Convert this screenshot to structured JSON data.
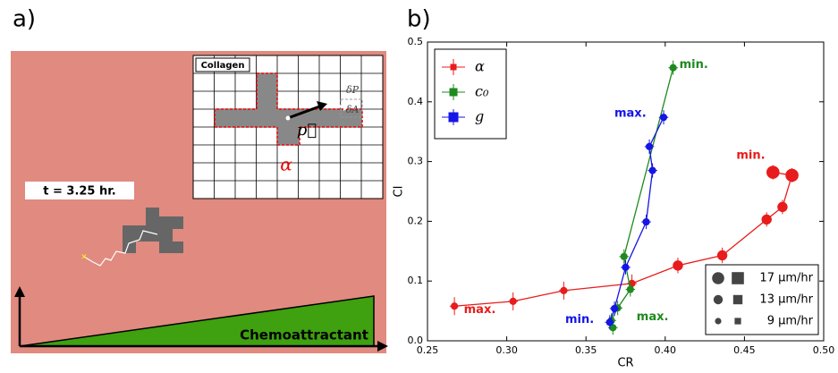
{
  "panel_a": {
    "label": "a)",
    "inset_title": "Collagen",
    "time": "t = 3.25 hr.",
    "gradient": "Chemoattractant",
    "delta_p": "δP",
    "delta_a": "δA",
    "polarization": "p⃗",
    "cell": "α"
  },
  "chart_data": {
    "type": "scatter",
    "label": "b)",
    "xlabel": "CR",
    "ylabel": "CI",
    "xlim": [
      0.25,
      0.5
    ],
    "ylim": [
      0,
      0.5
    ],
    "xticks": [
      0.25,
      {
        "value": 0.3,
        "label": "0.30"
      },
      0.35,
      {
        "value": 0.4,
        "label": "0.40"
      },
      0.45,
      {
        "value": 0.5,
        "label": "0.50"
      }
    ],
    "yticks": [
      {
        "value": 0,
        "label": "0.0"
      },
      0.1,
      0.2,
      0.3,
      0.4,
      0.5
    ],
    "legend": "upper left",
    "series": [
      {
        "name": "α",
        "color": "#e81c1c",
        "x": [
          0.267,
          0.304,
          0.336,
          0.379,
          0.408,
          0.436,
          0.464,
          0.474,
          0.48,
          0.468
        ],
        "values": [
          0.058,
          0.066,
          0.084,
          0.096,
          0.126,
          0.143,
          0.203,
          0.224,
          0.277,
          0.282
        ],
        "sizes": [
          9,
          9,
          9,
          9,
          13,
          13,
          13,
          13,
          17,
          17
        ],
        "xerr": [
          0.003,
          0.003,
          0.003,
          0.003,
          0.003,
          0.003,
          0.003,
          0.003,
          0.003,
          0.003
        ],
        "yerr": [
          0.015,
          0.015,
          0.015,
          0.015,
          0.013,
          0.013,
          0.012,
          0.012,
          0.012,
          0.012
        ]
      },
      {
        "name": "c₀",
        "color": "#1e8a1e",
        "x": [
          0.405,
          0.374,
          0.378,
          0.37,
          0.366,
          0.367
        ],
        "values": [
          0.457,
          0.141,
          0.086,
          0.055,
          0.034,
          0.022
        ],
        "sizes": [
          9,
          9,
          9,
          9,
          9,
          9
        ],
        "xerr": [
          0.003,
          0.003,
          0.003,
          0.003,
          0.003,
          0.003
        ],
        "yerr": [
          0.012,
          0.012,
          0.012,
          0.012,
          0.012,
          0.012
        ]
      },
      {
        "name": "g",
        "color": "#1515e6",
        "x": [
          0.399,
          0.39,
          0.392,
          0.388,
          0.375,
          0.368,
          0.365
        ],
        "values": [
          0.374,
          0.325,
          0.285,
          0.199,
          0.123,
          0.054,
          0.031
        ],
        "sizes": [
          9,
          9,
          9,
          9,
          9,
          9,
          9
        ],
        "xerr": [
          0.003,
          0.003,
          0.003,
          0.003,
          0.003,
          0.003,
          0.003
        ],
        "yerr": [
          0.012,
          0.012,
          0.012,
          0.012,
          0.012,
          0.012,
          0.012
        ]
      }
    ],
    "annotations": [
      {
        "text": "min.",
        "x": 0.454,
        "y": 0.31,
        "color": "#e81c1c"
      },
      {
        "text": "max.",
        "x": 0.283,
        "y": 0.052,
        "color": "#e81c1c"
      },
      {
        "text": "min.",
        "x": 0.418,
        "y": 0.462,
        "color": "#1e8a1e"
      },
      {
        "text": "max.",
        "x": 0.392,
        "y": 0.04,
        "color": "#1e8a1e"
      },
      {
        "text": "max.",
        "x": 0.378,
        "y": 0.38,
        "color": "#1515e6"
      },
      {
        "text": "min.",
        "x": 0.346,
        "y": 0.035,
        "color": "#1515e6"
      }
    ],
    "size_legend": [
      {
        "value": 17,
        "label": "17 μm/hr"
      },
      {
        "value": 13,
        "label": "13 μm/hr"
      },
      {
        "value": 9,
        "label": "9 μm/hr"
      }
    ]
  }
}
